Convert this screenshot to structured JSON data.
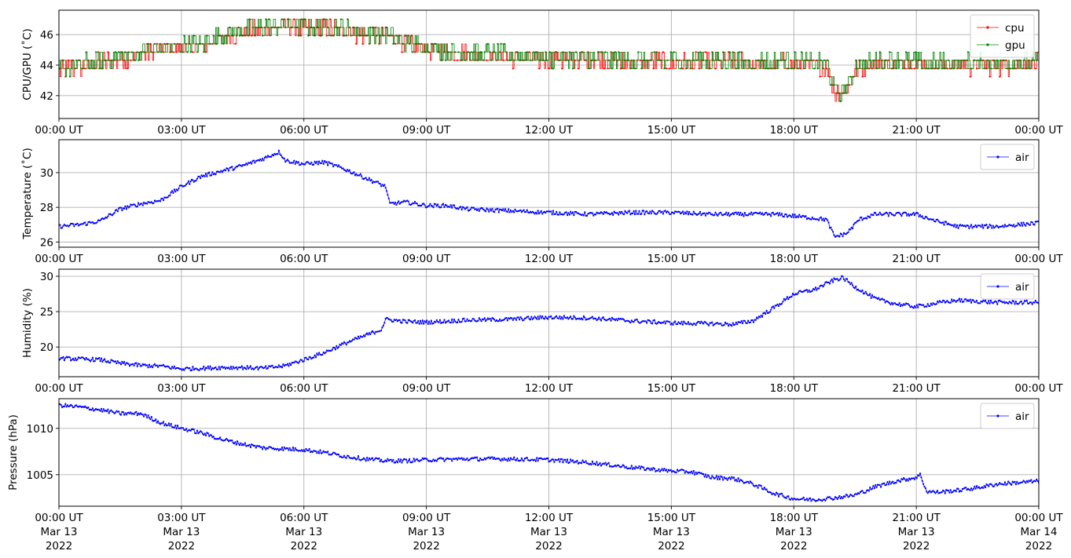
{
  "chart_data": [
    {
      "type": "line",
      "ylabel": "CPU/GPU (˚C)",
      "ylim": [
        40.5,
        47.6
      ],
      "yticks": [
        42,
        44,
        46
      ],
      "xlim": [
        "2022-03-13T00:00Z",
        "2022-03-14T00:00Z"
      ],
      "xticks": [
        "00:00 UT",
        "03:00 UT",
        "06:00 UT",
        "09:00 UT",
        "12:00 UT",
        "15:00 UT",
        "18:00 UT",
        "21:00 UT",
        "00:00 UT"
      ],
      "grid": true,
      "legend": "top-right",
      "markers": true,
      "series": [
        {
          "name": "cpu",
          "color": "#ff0000",
          "x_hours": [
            0,
            0.5,
            1,
            1.5,
            2,
            2.5,
            3,
            3.5,
            4,
            4.5,
            5,
            5.5,
            6,
            6.5,
            7,
            7.5,
            8,
            8.5,
            9,
            9.5,
            10,
            11,
            12,
            13,
            14,
            15,
            16,
            17,
            18,
            18.8,
            19,
            19.3,
            19.5,
            20,
            21,
            22,
            23,
            24
          ],
          "values": [
            43.5,
            43.7,
            44.0,
            44.1,
            44.5,
            44.8,
            45.0,
            45.0,
            45.6,
            46.0,
            46.2,
            46.3,
            46.2,
            46.2,
            46.1,
            45.8,
            45.7,
            45.2,
            44.9,
            44.7,
            44.5,
            44.3,
            44.2,
            44.1,
            44.0,
            44.0,
            44.0,
            43.9,
            43.9,
            43.8,
            42.0,
            42.2,
            43.5,
            44.0,
            43.9,
            43.8,
            43.8,
            43.9
          ]
        },
        {
          "name": "gpu",
          "color": "#008000",
          "x_hours": [
            0,
            0.5,
            1,
            1.5,
            2,
            2.5,
            3,
            3.5,
            4,
            4.5,
            5,
            5.5,
            6,
            6.5,
            7,
            7.5,
            8,
            8.5,
            9,
            9.5,
            10,
            11,
            12,
            13,
            14,
            15,
            16,
            17,
            18,
            18.8,
            19,
            19.3,
            19.5,
            20,
            21,
            22,
            23,
            24
          ],
          "values": [
            43.6,
            43.8,
            44.1,
            44.3,
            44.6,
            44.9,
            45.1,
            45.2,
            45.8,
            46.1,
            46.3,
            46.5,
            46.3,
            46.3,
            46.2,
            45.9,
            45.8,
            45.3,
            45.0,
            44.8,
            44.6,
            44.4,
            44.3,
            44.2,
            44.1,
            44.1,
            44.1,
            44.0,
            44.0,
            43.9,
            42.1,
            42.3,
            43.6,
            44.1,
            44.0,
            43.9,
            43.9,
            44.0
          ]
        }
      ]
    },
    {
      "type": "line",
      "ylabel": "Temperature (˚C)",
      "ylim": [
        25.7,
        31.9
      ],
      "yticks": [
        26,
        28,
        30
      ],
      "xlim": [
        "2022-03-13T00:00Z",
        "2022-03-14T00:00Z"
      ],
      "xticks": [
        "00:00 UT",
        "03:00 UT",
        "06:00 UT",
        "09:00 UT",
        "12:00 UT",
        "15:00 UT",
        "18:00 UT",
        "21:00 UT",
        "00:00 UT"
      ],
      "grid": true,
      "legend": "top-right",
      "markers": true,
      "series": [
        {
          "name": "air",
          "color": "#0000ff",
          "x_hours": [
            0,
            0.5,
            1,
            1.5,
            2,
            2.5,
            3,
            3.5,
            4,
            4.5,
            5,
            5.4,
            5.55,
            6,
            6.5,
            7,
            7.5,
            8,
            8.1,
            8.5,
            9,
            9.5,
            10,
            11,
            12,
            13,
            14,
            15,
            16,
            17,
            17.5,
            18,
            18.8,
            19,
            19.3,
            19.6,
            20,
            21,
            21.5,
            22,
            23,
            24
          ],
          "values": [
            26.9,
            27.0,
            27.2,
            27.9,
            28.2,
            28.4,
            29.2,
            29.8,
            30.1,
            30.4,
            30.8,
            31.2,
            30.7,
            30.5,
            30.6,
            30.2,
            29.7,
            29.2,
            28.2,
            28.3,
            28.1,
            28.1,
            27.9,
            27.8,
            27.7,
            27.6,
            27.7,
            27.7,
            27.6,
            27.6,
            27.6,
            27.5,
            27.3,
            26.3,
            26.5,
            27.3,
            27.6,
            27.6,
            27.2,
            26.9,
            26.9,
            27.1
          ]
        }
      ]
    },
    {
      "type": "line",
      "ylabel": "Humidity (%)",
      "ylim": [
        15.8,
        31.0
      ],
      "yticks": [
        20,
        25,
        30
      ],
      "xlim": [
        "2022-03-13T00:00Z",
        "2022-03-14T00:00Z"
      ],
      "xticks": [
        "00:00 UT",
        "03:00 UT",
        "06:00 UT",
        "09:00 UT",
        "12:00 UT",
        "15:00 UT",
        "18:00 UT",
        "21:00 UT",
        "00:00 UT"
      ],
      "grid": true,
      "legend": "top-right",
      "markers": true,
      "series": [
        {
          "name": "air",
          "color": "#0000ff",
          "x_hours": [
            0,
            0.5,
            1,
            1.5,
            2,
            2.5,
            3,
            3.5,
            4,
            4.5,
            5,
            5.5,
            6,
            6.5,
            7,
            7.5,
            7.9,
            8.0,
            8.5,
            9,
            10,
            11,
            12,
            13,
            14,
            15,
            16,
            16.5,
            17,
            17.5,
            18,
            18.5,
            19,
            19.2,
            19.5,
            20,
            20.5,
            21,
            21.5,
            22,
            23,
            24
          ],
          "values": [
            18.4,
            18.3,
            18.2,
            17.7,
            17.4,
            17.3,
            16.9,
            17.0,
            17.1,
            17.1,
            17.0,
            17.3,
            18.2,
            19.2,
            20.5,
            21.6,
            22.5,
            23.9,
            23.6,
            23.5,
            23.8,
            23.9,
            24.2,
            24.1,
            23.7,
            23.4,
            23.3,
            23.2,
            23.7,
            25.5,
            27.5,
            28.1,
            29.5,
            29.8,
            28.5,
            26.8,
            26.1,
            25.7,
            26.2,
            26.6,
            26.3,
            26.3
          ]
        }
      ]
    },
    {
      "type": "line",
      "ylabel": "Pressure (hPa)",
      "ylim": [
        1001.6,
        1013.2
      ],
      "yticks": [
        1005,
        1010
      ],
      "xlim": [
        "2022-03-13T00:00Z",
        "2022-03-14T00:00Z"
      ],
      "xticks": [
        "00:00 UT",
        "03:00 UT",
        "06:00 UT",
        "09:00 UT",
        "12:00 UT",
        "15:00 UT",
        "18:00 UT",
        "21:00 UT",
        "00:00 UT"
      ],
      "xticks_date": [
        "Mar 13",
        "Mar 13",
        "Mar 13",
        "Mar 13",
        "Mar 13",
        "Mar 13",
        "Mar 13",
        "Mar 13",
        "Mar 14"
      ],
      "xticks_year": [
        "2022",
        "2022",
        "2022",
        "2022",
        "2022",
        "2022",
        "2022",
        "2022",
        "2022"
      ],
      "grid": true,
      "legend": "top-right",
      "markers": true,
      "series": [
        {
          "name": "air",
          "color": "#0000ff",
          "x_hours": [
            0,
            0.5,
            1,
            1.5,
            2,
            2.5,
            3,
            3.5,
            4,
            4.5,
            5,
            5.5,
            6,
            6.5,
            7,
            7.5,
            8,
            8.5,
            9,
            10,
            11,
            12,
            13,
            14,
            15,
            15.5,
            16,
            16.5,
            17,
            17.5,
            18,
            18.5,
            19,
            19.5,
            20,
            20.5,
            21,
            21.1,
            21.25,
            21.5,
            22,
            22.5,
            23,
            24
          ],
          "values": [
            1012.5,
            1012.3,
            1012.0,
            1011.6,
            1011.6,
            1010.6,
            1010.0,
            1009.5,
            1008.8,
            1008.3,
            1007.9,
            1007.8,
            1007.7,
            1007.4,
            1007.0,
            1006.7,
            1006.5,
            1006.5,
            1006.6,
            1006.7,
            1006.7,
            1006.6,
            1006.3,
            1005.8,
            1005.4,
            1005.3,
            1004.7,
            1004.6,
            1004.0,
            1003.0,
            1002.4,
            1002.3,
            1002.5,
            1002.8,
            1003.7,
            1004.3,
            1004.7,
            1005.0,
            1003.2,
            1003.1,
            1003.3,
            1003.6,
            1004.0,
            1004.3
          ]
        }
      ]
    }
  ]
}
